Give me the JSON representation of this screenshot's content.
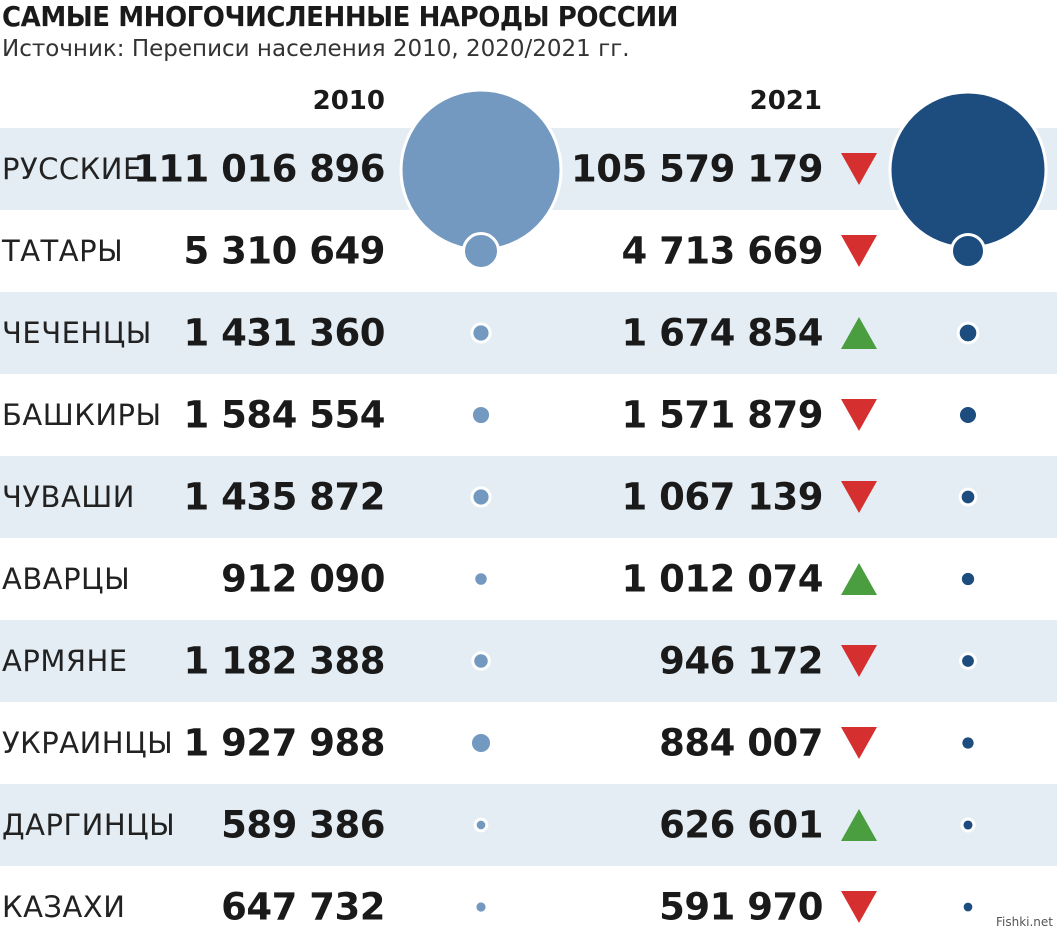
{
  "title": "САМЫЕ МНОГОЧИСЛЕННЫЕ НАРОДЫ РОССИИ",
  "subtitle": "Источник: Переписи населения 2010, 2020/2021 гг.",
  "watermark": "Fishki.net",
  "colors": {
    "shade": "#e4edf4",
    "bubble_2010": "#7399c0",
    "bubble_2021": "#1c4d7e",
    "up": "#4a9e3f",
    "down": "#d62f2f"
  },
  "chart_data": {
    "type": "table",
    "columns": [
      "2010",
      "2021"
    ],
    "rows": [
      {
        "name": "РУССКИЕ",
        "v2010": 111016896,
        "v2010_text": "111 016 896",
        "v2021": 105579179,
        "v2021_text": "105 579 179",
        "trend": "down"
      },
      {
        "name": "ТАТАРЫ",
        "v2010": 5310649,
        "v2010_text": "5 310 649",
        "v2021": 4713669,
        "v2021_text": "4 713 669",
        "trend": "down"
      },
      {
        "name": "ЧЕЧЕНЦЫ",
        "v2010": 1431360,
        "v2010_text": "1 431 360",
        "v2021": 1674854,
        "v2021_text": "1 674 854",
        "trend": "up"
      },
      {
        "name": "БАШКИРЫ",
        "v2010": 1584554,
        "v2010_text": "1 584 554",
        "v2021": 1571879,
        "v2021_text": "1 571 879",
        "trend": "down"
      },
      {
        "name": "ЧУВАШИ",
        "v2010": 1435872,
        "v2010_text": "1 435 872",
        "v2021": 1067139,
        "v2021_text": "1 067 139",
        "trend": "down"
      },
      {
        "name": "АВАРЦЫ",
        "v2010": 912090,
        "v2010_text": "912 090",
        "v2021": 1012074,
        "v2021_text": "1 012 074",
        "trend": "up"
      },
      {
        "name": "АРМЯНЕ",
        "v2010": 1182388,
        "v2010_text": "1 182 388",
        "v2021": 946172,
        "v2021_text": "946 172",
        "trend": "down"
      },
      {
        "name": "УКРАИНЦЫ",
        "v2010": 1927988,
        "v2010_text": "1 927 988",
        "v2021": 884007,
        "v2021_text": "884 007",
        "trend": "down"
      },
      {
        "name": "ДАРГИНЦЫ",
        "v2010": 589386,
        "v2010_text": "589 386",
        "v2021": 626601,
        "v2021_text": "626 601",
        "trend": "up"
      },
      {
        "name": "КАЗАХИ",
        "v2010": 647732,
        "v2010_text": "647 732",
        "v2021": 591970,
        "v2021_text": "591 970",
        "trend": "down"
      }
    ]
  }
}
